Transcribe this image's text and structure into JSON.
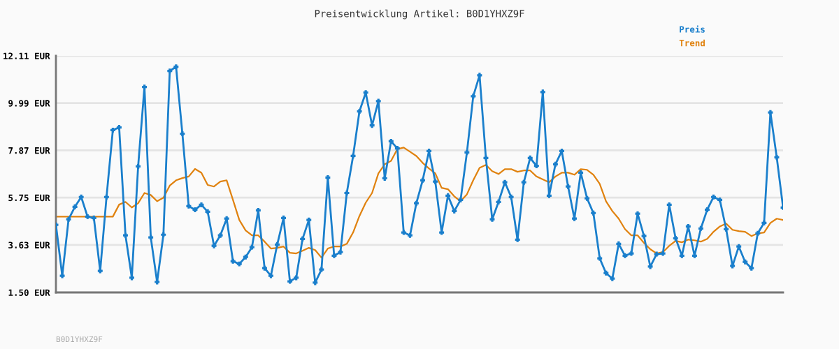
{
  "chart_data": {
    "type": "line",
    "title": "Preisentwicklung Artikel: B0D1YHXZ9F",
    "categories": [
      null,
      null,
      null,
      null,
      null,
      null,
      null,
      null,
      null,
      null,
      null,
      null,
      null,
      null,
      null,
      null,
      null,
      null,
      null,
      null,
      null,
      null,
      null,
      null,
      null,
      null,
      null,
      null,
      null,
      null,
      null,
      null,
      null,
      null,
      null,
      null,
      null,
      null,
      null,
      null,
      null,
      null,
      null,
      null,
      null,
      null,
      null,
      null,
      null,
      null,
      null,
      null,
      null,
      null,
      null,
      null,
      null,
      null,
      null,
      null,
      null,
      null,
      null,
      null,
      null,
      null,
      null,
      null,
      null,
      null,
      null,
      null,
      null,
      null,
      null,
      null,
      null,
      null,
      null,
      null,
      null,
      null,
      null,
      null,
      null,
      null,
      null,
      null,
      null,
      null,
      null,
      null,
      null,
      null,
      null,
      null,
      null,
      null,
      null,
      null,
      null,
      null,
      null,
      null,
      null,
      null,
      null,
      null,
      null,
      null,
      null,
      null,
      null,
      null,
      null,
      null
    ],
    "series": [
      {
        "name": "Preis",
        "color": "#1a7fcc",
        "marker": "cross",
        "values": [
          4.53,
          2.25,
          4.78,
          5.34,
          5.78,
          4.9,
          4.84,
          2.47,
          5.78,
          8.78,
          8.9,
          4.06,
          2.16,
          7.15,
          10.71,
          3.97,
          1.97,
          4.09,
          11.43,
          11.62,
          8.62,
          5.37,
          5.21,
          5.43,
          5.12,
          3.59,
          4.06,
          4.81,
          2.9,
          2.78,
          3.09,
          3.53,
          5.18,
          2.59,
          2.25,
          3.65,
          4.84,
          2.0,
          2.16,
          3.9,
          4.75,
          1.94,
          2.53,
          6.65,
          3.15,
          3.31,
          5.96,
          7.62,
          9.62,
          10.46,
          8.99,
          10.08,
          6.62,
          8.28,
          7.96,
          4.19,
          4.06,
          5.5,
          6.53,
          7.84,
          6.47,
          4.19,
          5.84,
          5.15,
          5.65,
          7.78,
          10.3,
          11.24,
          7.53,
          4.78,
          5.56,
          6.44,
          5.78,
          3.87,
          6.44,
          7.53,
          7.18,
          10.49,
          5.84,
          7.25,
          7.84,
          6.25,
          4.81,
          6.87,
          5.72,
          5.06,
          3.03,
          2.37,
          2.12,
          3.68,
          3.15,
          3.25,
          5.03,
          4.03,
          2.66,
          3.22,
          3.25,
          5.43,
          3.93,
          3.15,
          4.46,
          3.15,
          4.37,
          5.21,
          5.78,
          5.65,
          4.34,
          2.69,
          3.56,
          2.87,
          2.59,
          4.15,
          4.62,
          9.57,
          7.56,
          5.31
        ]
      },
      {
        "name": "Trend",
        "color": "#e0820f",
        "marker": "none",
        "values": [
          4.9,
          4.9,
          4.9,
          4.9,
          4.9,
          4.9,
          4.9,
          4.9,
          4.9,
          4.9,
          5.44,
          5.56,
          5.31,
          5.5,
          5.96,
          5.87,
          5.59,
          5.75,
          6.29,
          6.53,
          6.63,
          6.7,
          7.04,
          6.87,
          6.32,
          6.25,
          6.47,
          6.53,
          5.65,
          4.75,
          4.28,
          4.06,
          4.06,
          3.78,
          3.47,
          3.5,
          3.56,
          3.28,
          3.25,
          3.37,
          3.5,
          3.4,
          3.06,
          3.47,
          3.56,
          3.56,
          3.68,
          4.19,
          4.93,
          5.53,
          5.96,
          6.84,
          7.25,
          7.4,
          7.93,
          8.0,
          7.81,
          7.62,
          7.31,
          7.06,
          6.84,
          6.19,
          6.13,
          5.81,
          5.59,
          5.9,
          6.53,
          7.09,
          7.22,
          6.94,
          6.81,
          7.03,
          7.03,
          6.91,
          6.97,
          6.97,
          6.7,
          6.57,
          6.44,
          6.7,
          6.87,
          6.87,
          6.78,
          7.03,
          7.0,
          6.78,
          6.37,
          5.59,
          5.15,
          4.81,
          4.34,
          4.06,
          4.06,
          3.72,
          3.44,
          3.25,
          3.31,
          3.59,
          3.81,
          3.75,
          3.87,
          3.84,
          3.78,
          3.9,
          4.22,
          4.46,
          4.59,
          4.31,
          4.25,
          4.22,
          4.03,
          4.15,
          4.19,
          4.62,
          4.81,
          4.75
        ]
      }
    ],
    "ylim": [
      1.5,
      12.11
    ],
    "yticks": [
      {
        "value": 1.5,
        "label": "1.50 EUR"
      },
      {
        "value": 3.63,
        "label": "3.63 EUR"
      },
      {
        "value": 5.75,
        "label": "5.75 EUR"
      },
      {
        "value": 7.87,
        "label": "7.87 EUR"
      },
      {
        "value": 9.99,
        "label": "9.99 EUR"
      },
      {
        "value": 12.11,
        "label": "12.11 EUR"
      }
    ],
    "grid": "y",
    "legend": "top right",
    "tick_labels": "y",
    "line_style": "solid",
    "annotations": [
      "B0D1YHXZ9F"
    ]
  }
}
